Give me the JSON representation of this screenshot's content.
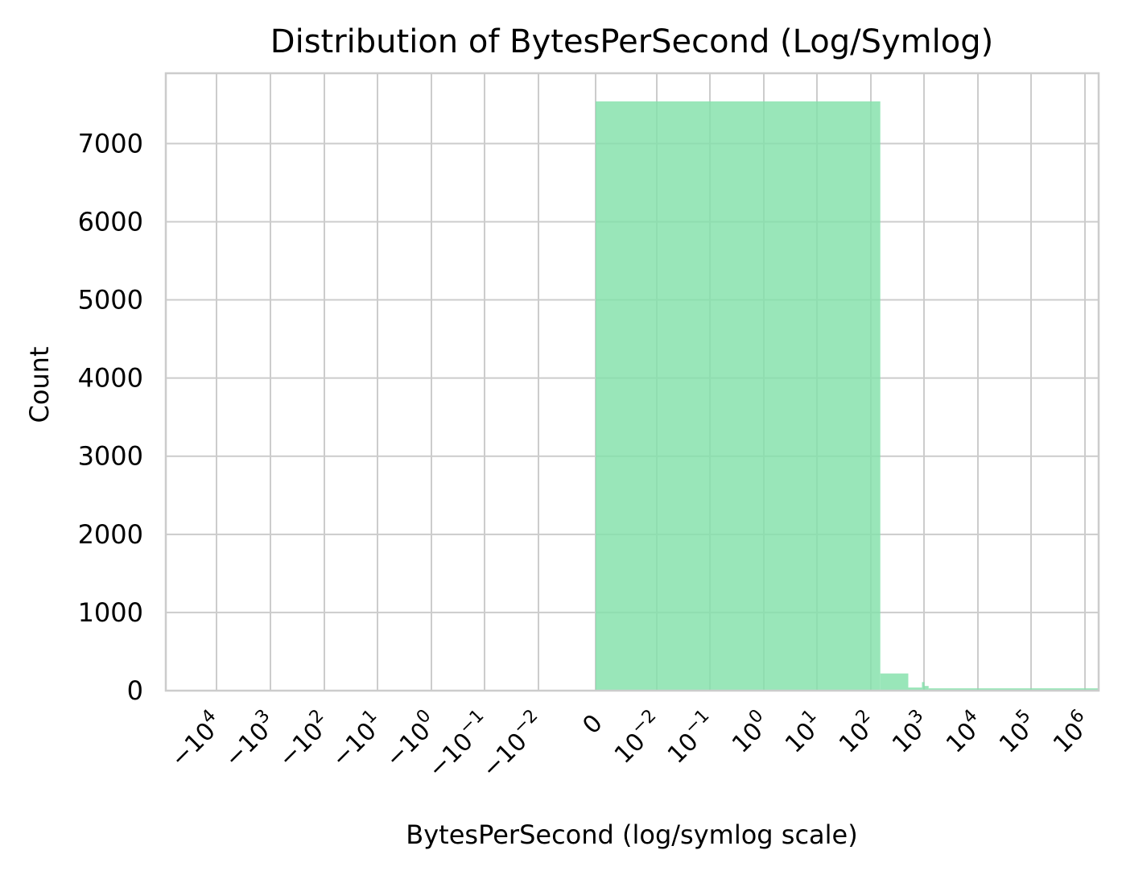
{
  "chart_data": {
    "type": "bar",
    "title": "Distribution of BytesPerSecond (Log/Symlog)",
    "xlabel": "BytesPerSecond (log/symlog scale)",
    "ylabel": "Count",
    "x_scale": "symlog",
    "grid": true,
    "color": "#82e0aa",
    "ylim": [
      0,
      7900
    ],
    "y_ticks": [
      0,
      1000,
      2000,
      3000,
      4000,
      5000,
      6000,
      7000
    ],
    "y_tick_labels": [
      "0",
      "1000",
      "2000",
      "3000",
      "4000",
      "5000",
      "6000",
      "7000"
    ],
    "x_ticks": [
      {
        "base": "−10",
        "exp": "4"
      },
      {
        "base": "−10",
        "exp": "3"
      },
      {
        "base": "−10",
        "exp": "2"
      },
      {
        "base": "−10",
        "exp": "1"
      },
      {
        "base": "−10",
        "exp": "0"
      },
      {
        "base": "−10",
        "exp": "−1"
      },
      {
        "base": "−10",
        "exp": "−2"
      },
      {
        "base": "0",
        "exp": ""
      },
      {
        "base": "10",
        "exp": "−2"
      },
      {
        "base": "10",
        "exp": "−1"
      },
      {
        "base": "10",
        "exp": "0"
      },
      {
        "base": "10",
        "exp": "1"
      },
      {
        "base": "10",
        "exp": "2"
      },
      {
        "base": "10",
        "exp": "3"
      },
      {
        "base": "10",
        "exp": "4"
      },
      {
        "base": "10",
        "exp": "5"
      },
      {
        "base": "10",
        "exp": "6"
      }
    ],
    "bins": [
      {
        "x_start": 0,
        "x_end": 150,
        "count": 7540
      },
      {
        "x_start": 150,
        "x_end": 500,
        "count": 220
      },
      {
        "x_start": 500,
        "x_end": 900,
        "count": 40
      },
      {
        "x_start": 900,
        "x_end": 1000,
        "count": 110
      },
      {
        "x_start": 1000,
        "x_end": 1200,
        "count": 60
      },
      {
        "x_start": 1200,
        "x_end": 10000000,
        "count": 30
      }
    ]
  }
}
